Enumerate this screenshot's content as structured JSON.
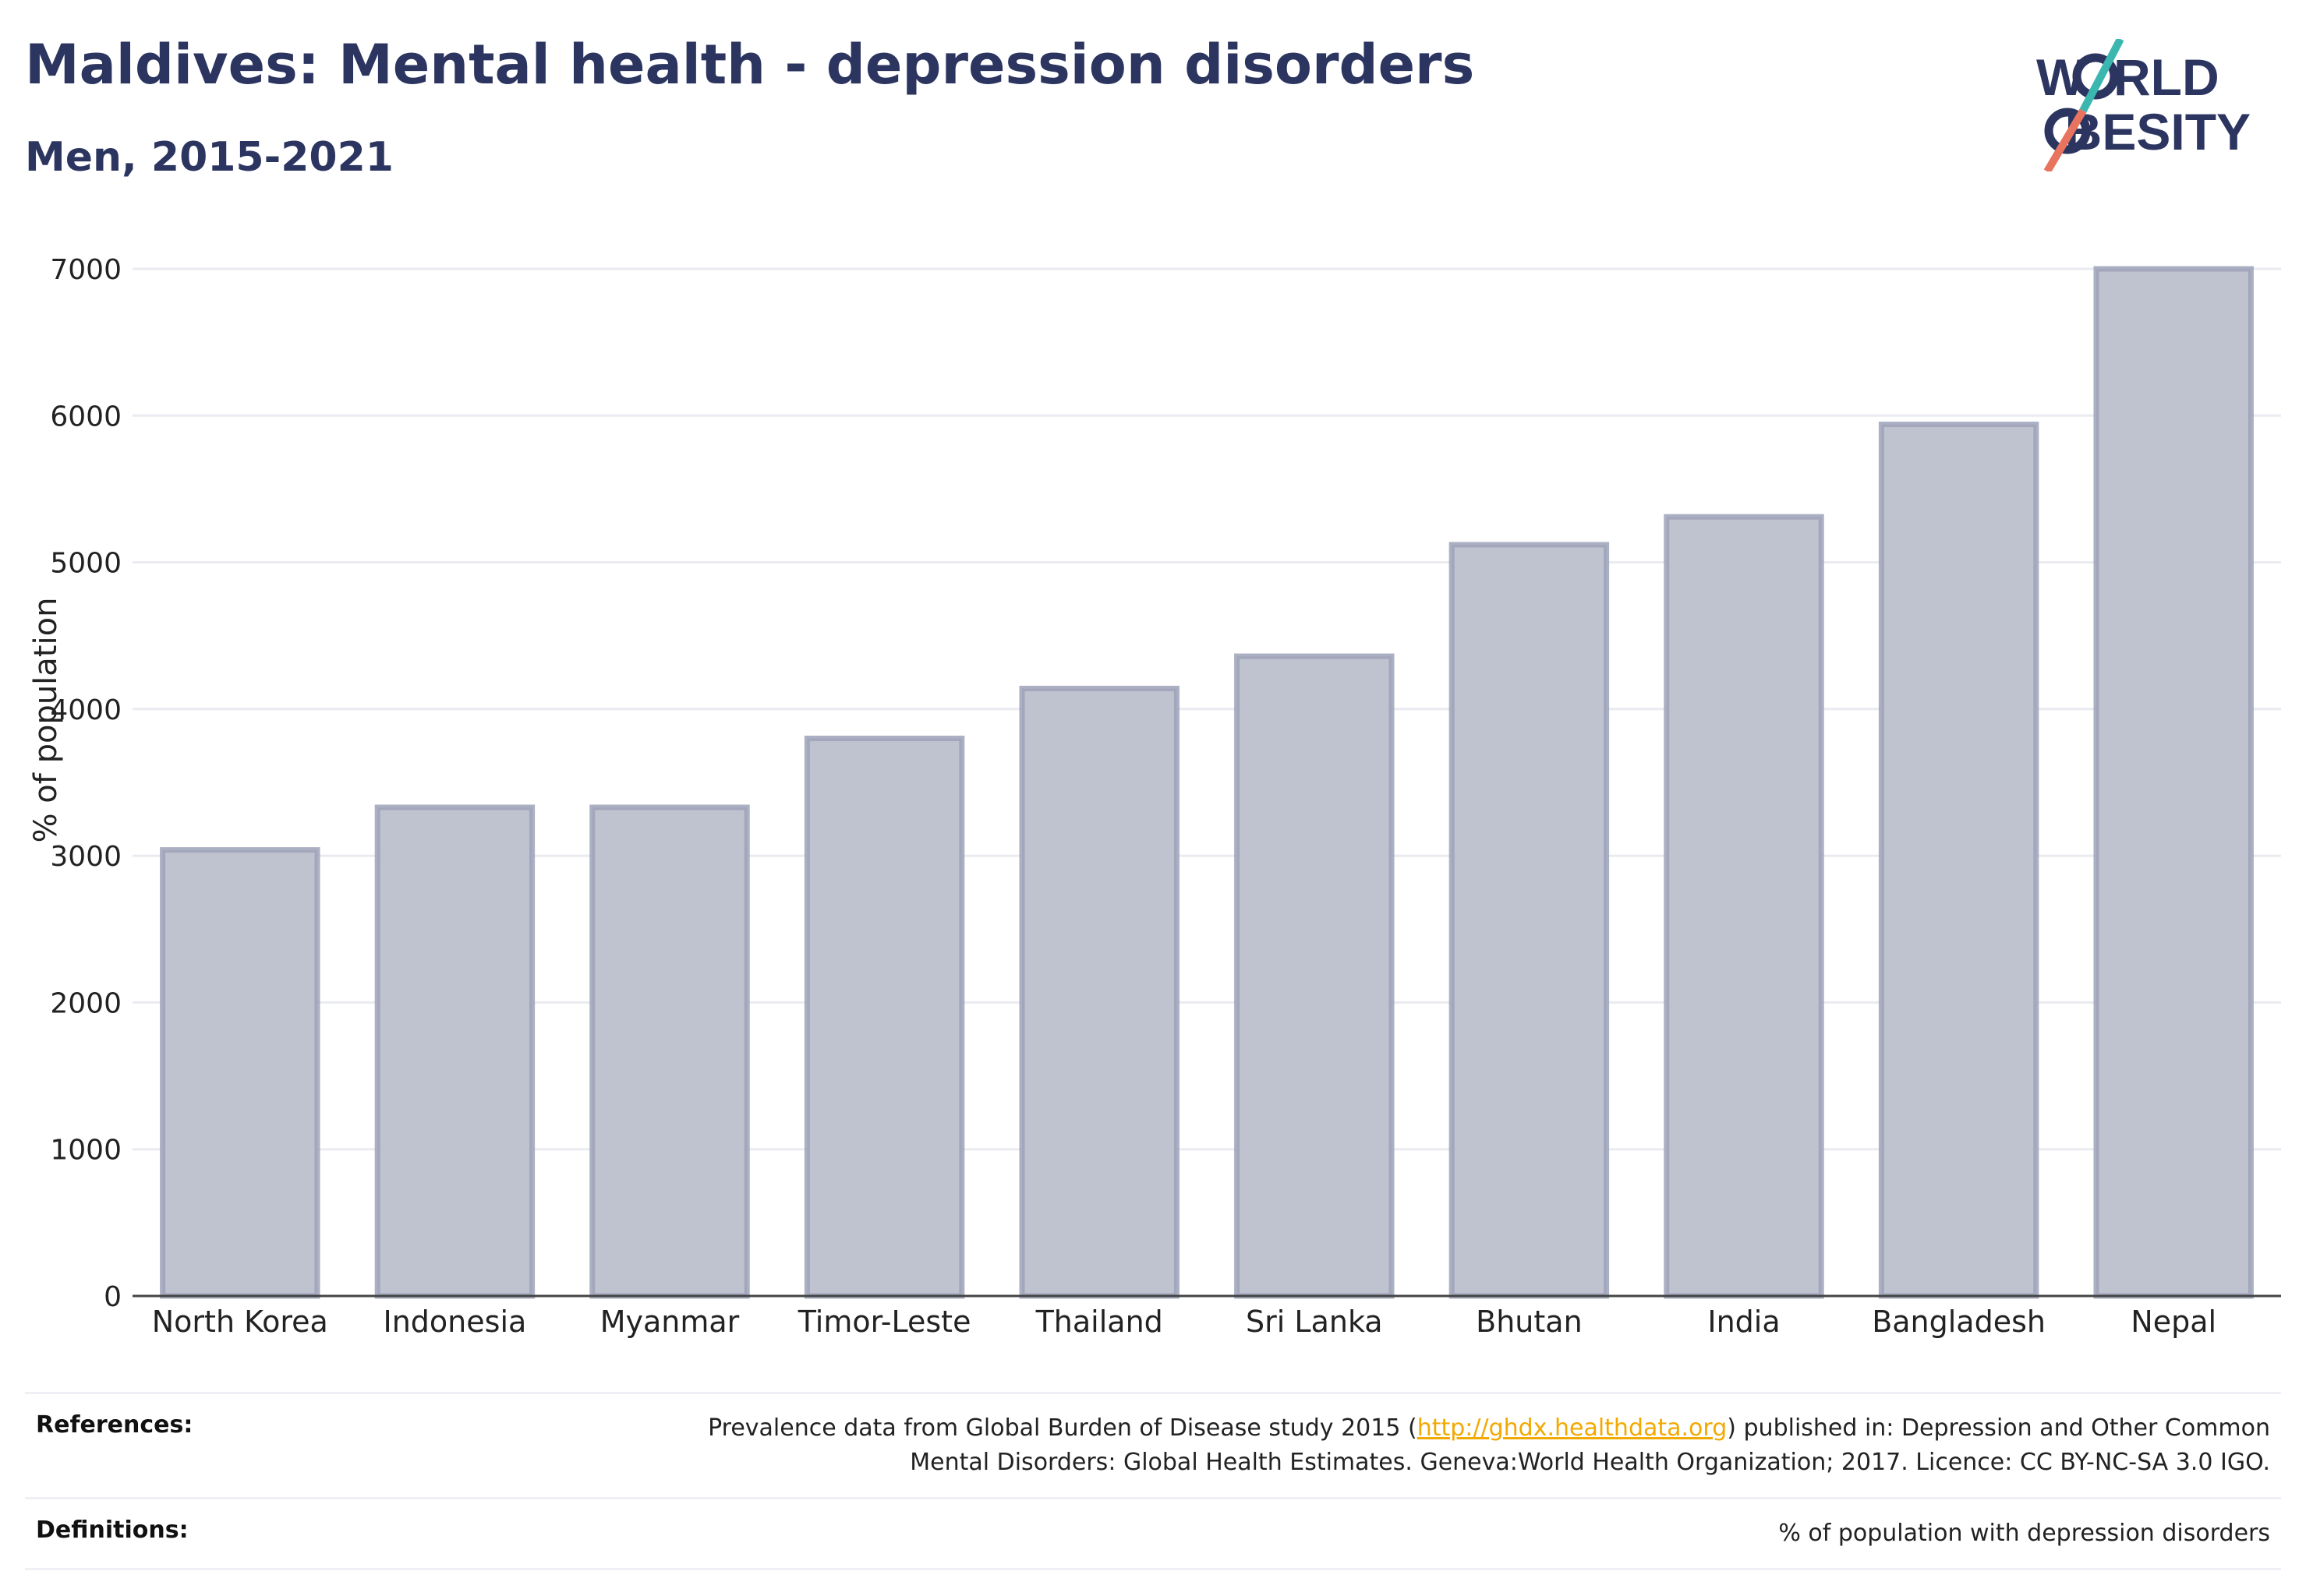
{
  "header": {
    "title": "Maldives: Mental health - depression disorders",
    "subtitle": "Men, 2015-2021"
  },
  "logo": {
    "line1": "W  RLD",
    "line2": "  BESITY",
    "text_color": "#2b3560",
    "accent_teal": "#3bb7b0",
    "accent_coral": "#e8735f"
  },
  "chart_data": {
    "type": "bar",
    "title": "",
    "xlabel": "",
    "ylabel": "% of population",
    "ylim": [
      0,
      7000
    ],
    "yticks": [
      0,
      1000,
      2000,
      3000,
      4000,
      5000,
      6000,
      7000
    ],
    "categories": [
      "North Korea",
      "Indonesia",
      "Myanmar",
      "Timor-Leste",
      "Thailand",
      "Sri Lanka",
      "Bhutan",
      "India",
      "Bangladesh",
      "Nepal"
    ],
    "values": [
      3040,
      3330,
      3330,
      3800,
      4140,
      4360,
      5120,
      5310,
      5940,
      7000
    ],
    "bar_color": "#bfc2cf",
    "bar_border_color": "#9da2b8",
    "grid": true
  },
  "footer": {
    "references_label": "References:",
    "references_text_before": "Prevalence data from Global Burden of Disease study 2015 (",
    "references_link": "http://ghdx.healthdata.org",
    "references_text_after": ") published in: Depression and Other Common",
    "references_line2": "Mental Disorders: Global Health Estimates. Geneva:World Health Organization; 2017. Licence: CC BY-NC-SA 3.0 IGO.",
    "definitions_label": "Definitions:",
    "definitions_text": "% of population with depression disorders"
  }
}
